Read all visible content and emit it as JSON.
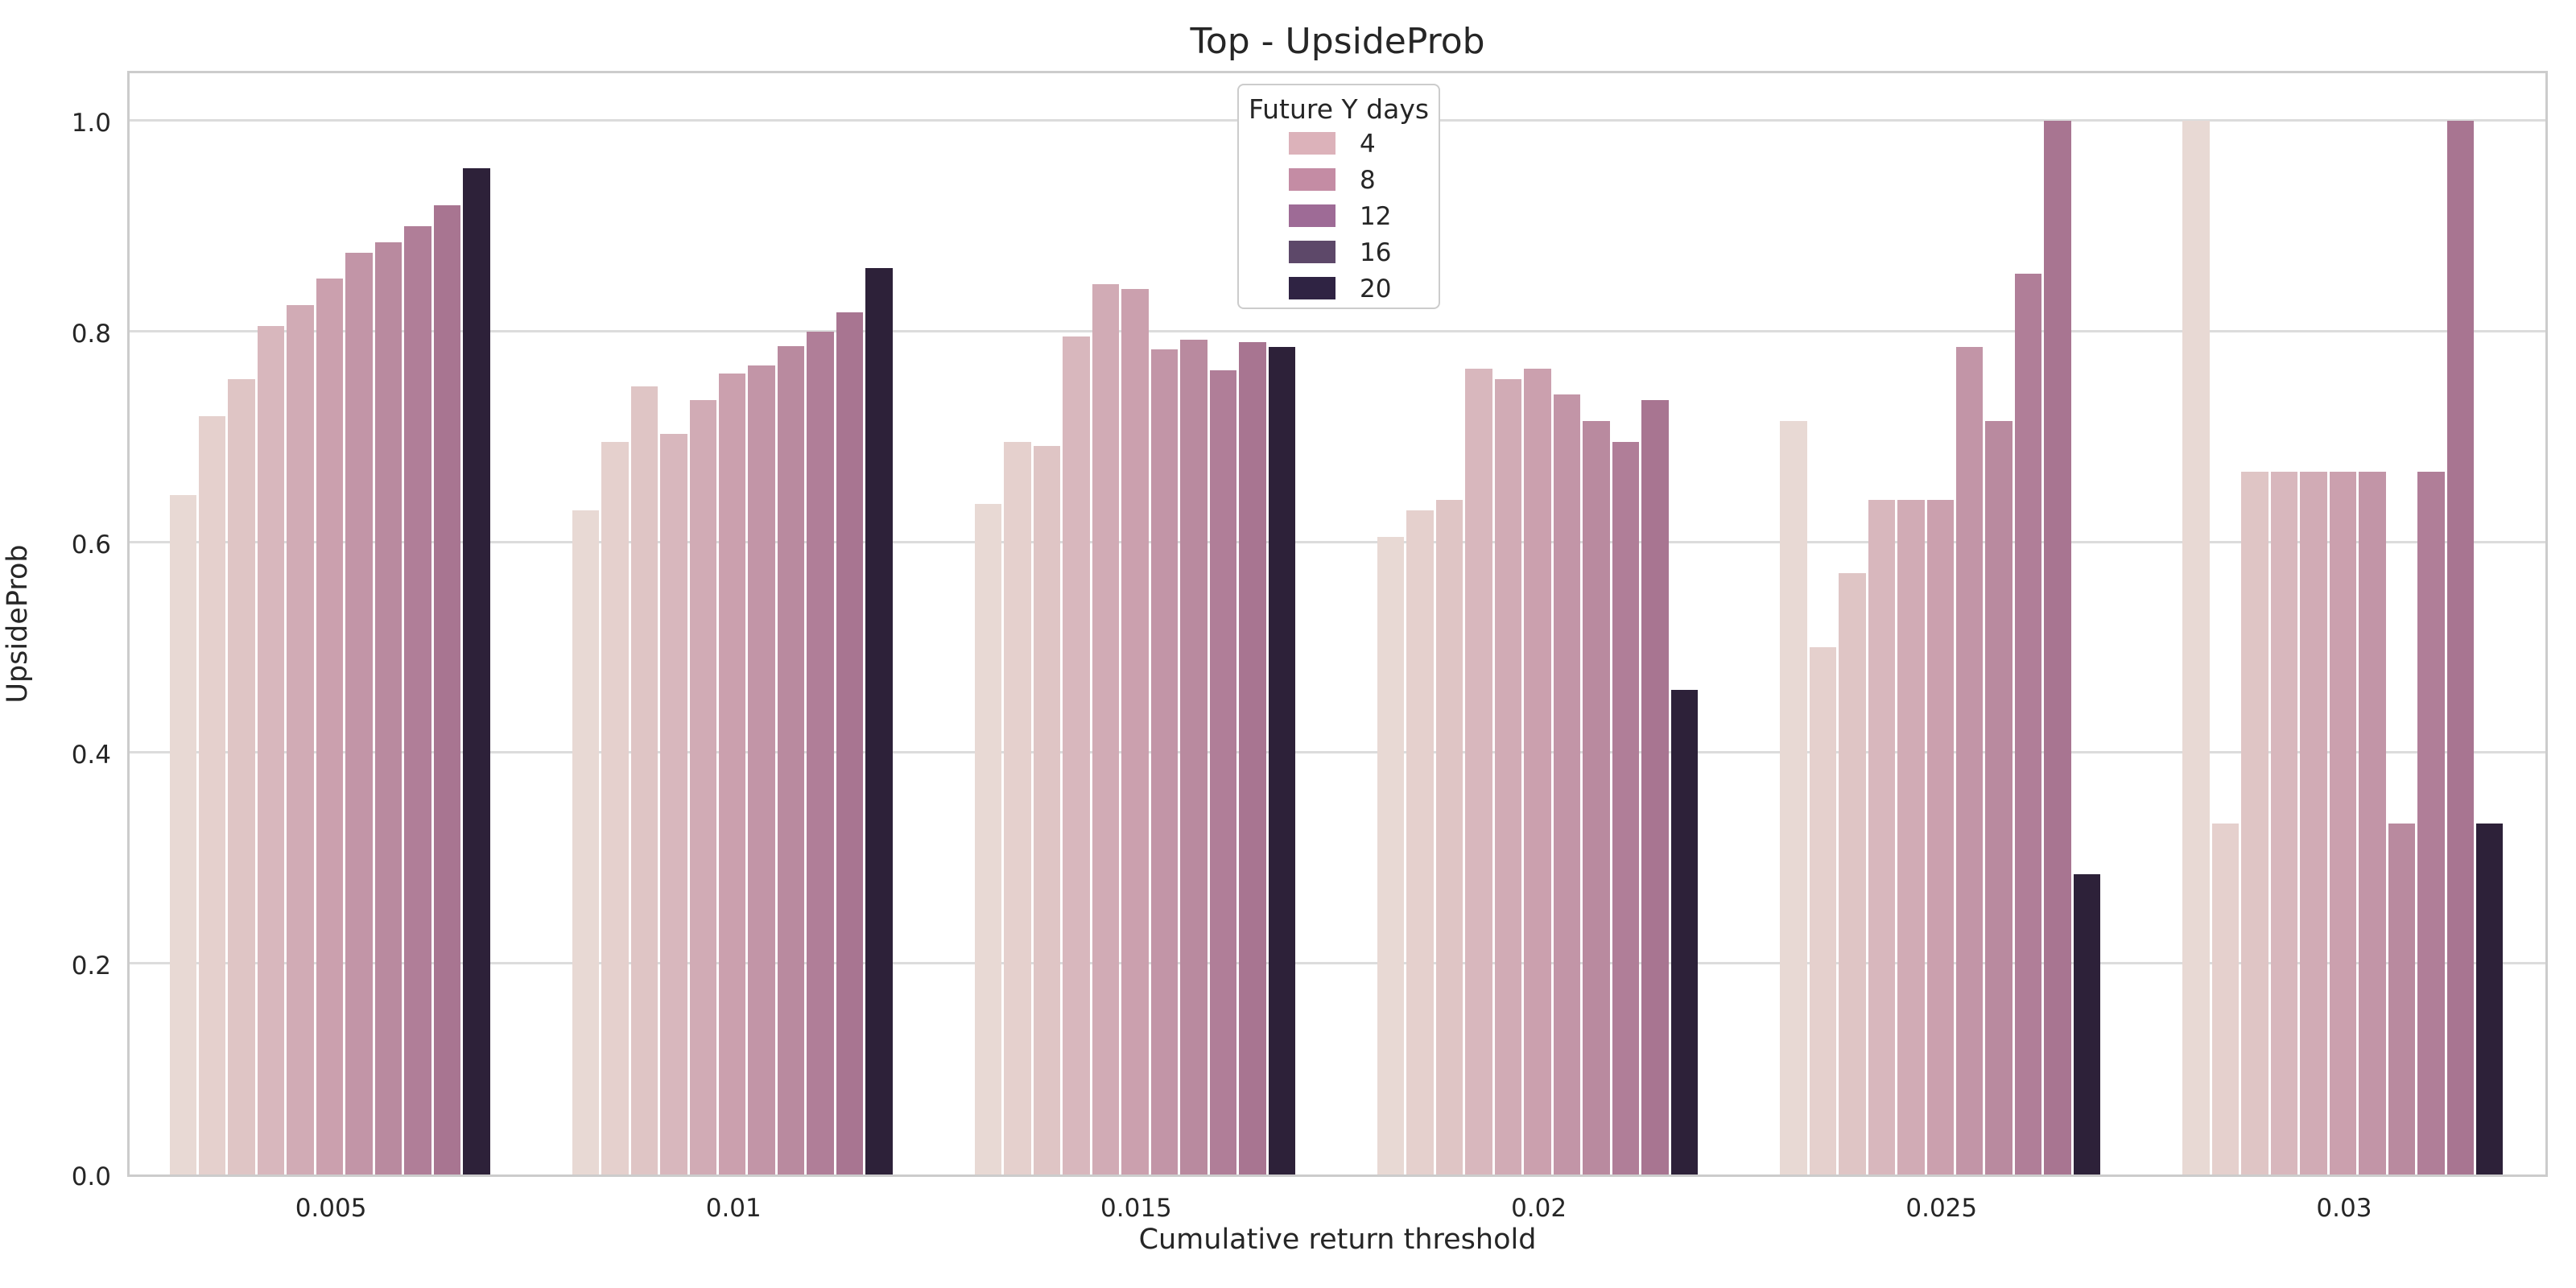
{
  "title": "Top - UpsideProb",
  "axes": {
    "xlabel": "Cumulative return threshold",
    "ylabel": "UpsideProb",
    "x_ticks": [
      "0.005",
      "0.01",
      "0.015",
      "0.02",
      "0.025",
      "0.03"
    ],
    "y_ticks": [
      {
        "label": "0.0",
        "value": 0.0
      },
      {
        "label": "0.2",
        "value": 0.2
      },
      {
        "label": "0.4",
        "value": 0.4
      },
      {
        "label": "0.6",
        "value": 0.6
      },
      {
        "label": "0.8",
        "value": 0.8
      },
      {
        "label": "1.0",
        "value": 1.0
      }
    ]
  },
  "legend": {
    "title": "Future Y days",
    "entries": [
      {
        "label": "4",
        "color": "#dcb2ba"
      },
      {
        "label": "8",
        "color": "#c48ca4"
      },
      {
        "label": "12",
        "color": "#9e6b96"
      },
      {
        "label": "16",
        "color": "#5d4869"
      },
      {
        "label": "20",
        "color": "#2f2343"
      }
    ]
  },
  "chart_data": {
    "type": "bar",
    "title": "Top - UpsideProb",
    "xlabel": "Cumulative return threshold",
    "ylabel": "UpsideProb",
    "ylim": [
      0,
      1.05
    ],
    "grid": true,
    "legend_position": "upper center",
    "legend_title": "Future Y days",
    "legend_labels_shown": [
      "4",
      "8",
      "12",
      "16",
      "20"
    ],
    "bars_per_group": 11,
    "categories": [
      "0.005",
      "0.01",
      "0.015",
      "0.02",
      "0.025",
      "0.03"
    ],
    "bar_palette": [
      "#e8d9d4",
      "#e5d0cd",
      "#dfc5c5",
      "#d8b7bd",
      "#d1abb5",
      "#cba0ae",
      "#c295a7",
      "#b98a9f",
      "#b07e98",
      "#a87591",
      "#2d2139"
    ],
    "groups": [
      {
        "category": "0.005",
        "values": [
          0.645,
          0.72,
          0.755,
          0.805,
          0.825,
          0.85,
          0.875,
          0.885,
          0.9,
          0.92,
          0.955
        ]
      },
      {
        "category": "0.01",
        "values": [
          0.63,
          0.695,
          0.748,
          0.703,
          0.735,
          0.76,
          0.768,
          0.786,
          0.8,
          0.818,
          0.86
        ]
      },
      {
        "category": "0.015",
        "values": [
          0.636,
          0.695,
          0.691,
          0.795,
          0.845,
          0.84,
          0.783,
          0.792,
          0.763,
          0.79,
          0.785
        ]
      },
      {
        "category": "0.02",
        "values": [
          0.605,
          0.63,
          0.64,
          0.765,
          0.755,
          0.765,
          0.74,
          0.715,
          0.695,
          0.735,
          0.46
        ]
      },
      {
        "category": "0.025",
        "values": [
          0.715,
          0.5,
          0.571,
          0.64,
          0.64,
          0.64,
          0.785,
          0.715,
          0.855,
          1.0,
          0.285
        ]
      },
      {
        "category": "0.03",
        "values": [
          1.0,
          0.333,
          0.667,
          0.667,
          0.667,
          0.667,
          0.667,
          0.333,
          0.667,
          1.0,
          0.333
        ]
      }
    ]
  },
  "style_colors": {
    "background": "#ffffff",
    "grid": "#dcdcdc",
    "spine": "#cccccc",
    "text": "#262626"
  }
}
